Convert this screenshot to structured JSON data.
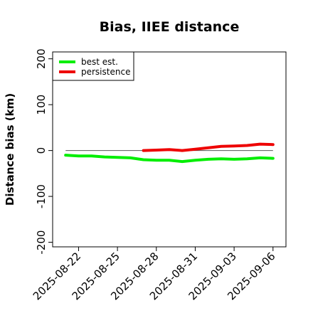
{
  "chart_data": {
    "type": "line",
    "title": "Bias, IIEE distance",
    "xlabel": "",
    "ylabel": "Distance bias (km)",
    "x_tick_labels": [
      "2025-08-22",
      "2025-08-25",
      "2025-08-28",
      "2025-08-31",
      "2025-09-03",
      "2025-09-06"
    ],
    "y_ticks": [
      -200,
      -100,
      0,
      100,
      200
    ],
    "ylim": [
      -210,
      215
    ],
    "xlim": [
      "2025-08-20",
      "2025-09-07"
    ],
    "x_start": "2025-08-20",
    "reference_line": 0,
    "legend_position": "top-left",
    "grid": false,
    "series": [
      {
        "name": "best est.",
        "color": "#00ee00",
        "x": [
          "2025-08-21",
          "2025-08-22",
          "2025-08-23",
          "2025-08-24",
          "2025-08-25",
          "2025-08-26",
          "2025-08-27",
          "2025-08-28",
          "2025-08-29",
          "2025-08-30",
          "2025-08-31",
          "2025-09-01",
          "2025-09-02",
          "2025-09-03",
          "2025-09-04",
          "2025-09-05",
          "2025-09-06"
        ],
        "values": [
          -10,
          -12,
          -12,
          -14,
          -15,
          -16,
          -20,
          -21,
          -21,
          -24,
          -21,
          -19,
          -18,
          -19,
          -18,
          -16,
          -17
        ]
      },
      {
        "name": "persistence",
        "color": "#ee0000",
        "x": [
          "2025-08-27",
          "2025-08-28",
          "2025-08-29",
          "2025-08-30",
          "2025-08-31",
          "2025-09-01",
          "2025-09-02",
          "2025-09-03",
          "2025-09-04",
          "2025-09-05",
          "2025-09-06"
        ],
        "values": [
          0,
          1,
          2,
          0,
          3,
          6,
          9,
          10,
          11,
          14,
          13
        ]
      }
    ]
  }
}
